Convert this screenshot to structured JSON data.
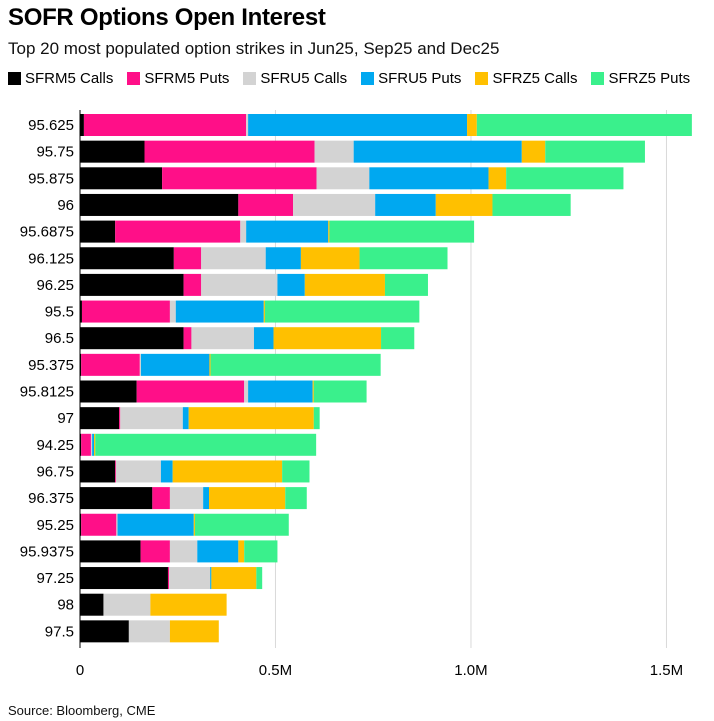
{
  "title": "SOFR Options Open Interest",
  "subtitle": "Top 20 most populated option strikes in Jun25, Sep25 and Dec25",
  "source": "Source: Bloomberg, CME",
  "chart_data": {
    "type": "bar",
    "orientation": "horizontal",
    "stacked": true,
    "title": "SOFR Options Open Interest",
    "xlabel": "",
    "ylabel": "",
    "xlim": [
      0,
      1550000
    ],
    "x_ticks": [
      {
        "value": 0,
        "label": "0"
      },
      {
        "value": 500000,
        "label": "0.5M"
      },
      {
        "value": 1000000,
        "label": "1.0M"
      },
      {
        "value": 1500000,
        "label": "1.5M"
      }
    ],
    "grid": true,
    "legend_position": "top",
    "categories": [
      "95.625",
      "95.75",
      "95.875",
      "96",
      "95.6875",
      "96.125",
      "96.25",
      "95.5",
      "96.5",
      "95.375",
      "95.8125",
      "97",
      "94.25",
      "96.75",
      "96.375",
      "95.25",
      "95.9375",
      "97.25",
      "98",
      "97.5"
    ],
    "series": [
      {
        "name": "SFRM5 Calls",
        "color": "#000000",
        "values": [
          10000,
          165000,
          210000,
          405000,
          90000,
          240000,
          265000,
          5000,
          265000,
          3000,
          145000,
          100000,
          3000,
          90000,
          185000,
          3000,
          155000,
          225000,
          60000,
          125000
        ]
      },
      {
        "name": "SFRM5 Puts",
        "color": "#ff0f88",
        "values": [
          415000,
          435000,
          395000,
          140000,
          320000,
          70000,
          45000,
          225000,
          20000,
          150000,
          275000,
          3000,
          25000,
          2000,
          45000,
          90000,
          75000,
          3000,
          0,
          0
        ]
      },
      {
        "name": "SFRU5 Calls",
        "color": "#d3d3d3",
        "values": [
          5000,
          100000,
          135000,
          210000,
          15000,
          165000,
          195000,
          15000,
          160000,
          3000,
          10000,
          160000,
          3000,
          115000,
          85000,
          3000,
          70000,
          105000,
          120000,
          105000
        ]
      },
      {
        "name": "SFRU5 Puts",
        "color": "#00a8f0",
        "values": [
          560000,
          430000,
          305000,
          155000,
          210000,
          90000,
          70000,
          225000,
          50000,
          175000,
          165000,
          15000,
          5000,
          30000,
          15000,
          195000,
          105000,
          3000,
          0,
          0
        ]
      },
      {
        "name": "SFRZ5 Calls",
        "color": "#ffc000",
        "values": [
          25000,
          60000,
          45000,
          145000,
          3000,
          150000,
          205000,
          3000,
          275000,
          3000,
          3000,
          320000,
          3000,
          280000,
          195000,
          3000,
          15000,
          115000,
          195000,
          125000
        ]
      },
      {
        "name": "SFRZ5 Puts",
        "color": "#3af08c",
        "values": [
          550000,
          255000,
          300000,
          200000,
          370000,
          225000,
          110000,
          395000,
          85000,
          435000,
          135000,
          15000,
          565000,
          70000,
          55000,
          240000,
          85000,
          15000,
          0,
          0
        ]
      }
    ]
  }
}
